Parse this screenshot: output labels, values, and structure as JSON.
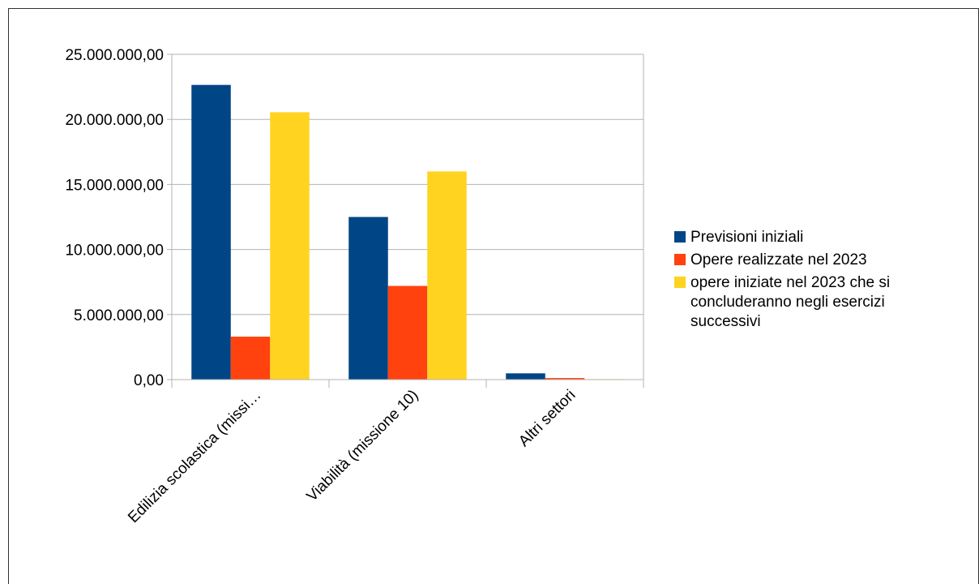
{
  "chart_data": {
    "type": "bar",
    "categories": [
      "Edilizia scolastica (missi…",
      "Viabilità (missione 10)",
      "Altri settori"
    ],
    "series": [
      {
        "name": "Previsioni iniziali",
        "color": "#004586",
        "values": [
          22650000,
          12500000,
          480000
        ]
      },
      {
        "name": "Opere realizzate nel 2023",
        "color": "#ff420e",
        "values": [
          3300000,
          7200000,
          120000
        ]
      },
      {
        "name": "opere iniziate nel 2023 che si concluderanno negli esercizi successivi",
        "color": "#ffd320",
        "values": [
          20550000,
          16000000,
          40000
        ]
      }
    ],
    "yticks": [
      "0,00",
      "5.000.000,00",
      "10.000.000,00",
      "15.000.000,00",
      "20.000.000,00",
      "25.000.000,00"
    ],
    "ylim": [
      0,
      25000000
    ],
    "grid": true,
    "legend_position": "right",
    "legend_lines": [
      [
        "Previsioni iniziali"
      ],
      [
        "Opere realizzate nel 2023"
      ],
      [
        "opere iniziate nel 2023 che si",
        "concluderanno negli esercizi",
        "successivi"
      ]
    ]
  }
}
